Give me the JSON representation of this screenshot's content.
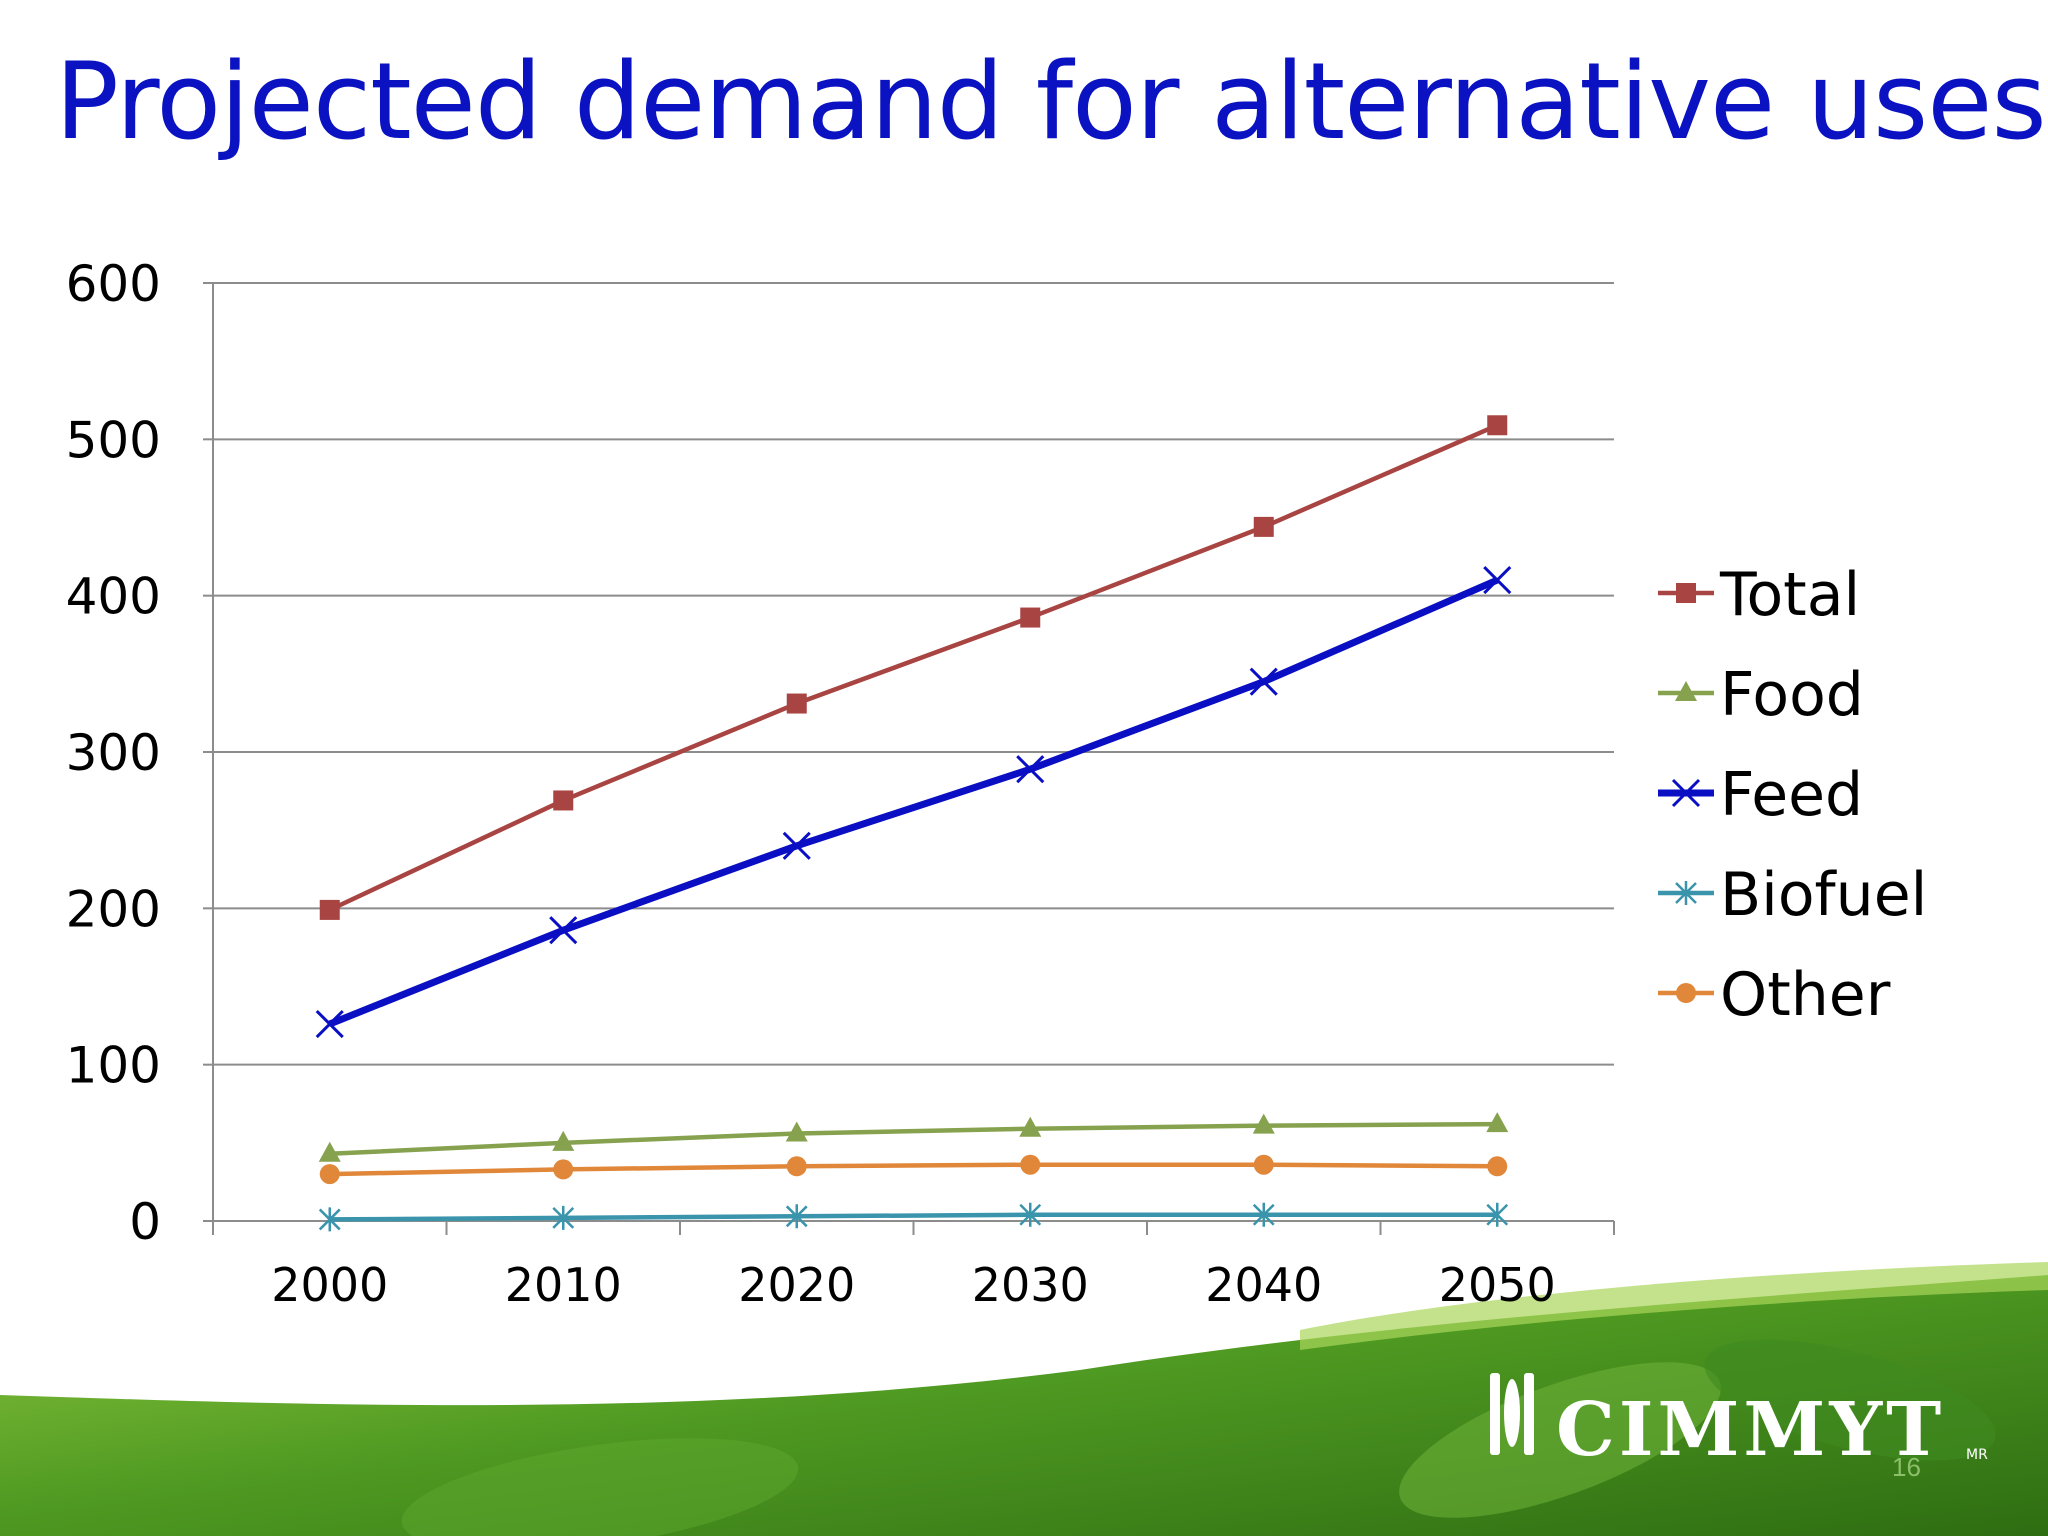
{
  "slide": {
    "title": "Projected demand for alternative uses",
    "page_number": "16",
    "logo": {
      "text": "CIMMYT",
      "mark": "MR"
    }
  },
  "chart_data": {
    "type": "line",
    "x": [
      2000,
      2010,
      2020,
      2030,
      2040,
      2050
    ],
    "categories": [
      "2000",
      "2010",
      "2020",
      "2030",
      "2040",
      "2050"
    ],
    "ylim": [
      0,
      600
    ],
    "yticks": [
      0,
      100,
      200,
      300,
      400,
      500,
      600
    ],
    "grid": true,
    "legend_position": "right",
    "series": [
      {
        "name": "Total",
        "values": [
          199,
          269,
          331,
          386,
          444,
          509
        ],
        "color": "#a84442",
        "marker": "square"
      },
      {
        "name": "Food",
        "values": [
          43,
          50,
          56,
          59,
          61,
          62
        ],
        "color": "#86a24f",
        "marker": "triangle"
      },
      {
        "name": "Feed",
        "values": [
          126,
          186,
          240,
          289,
          345,
          410
        ],
        "color": "#0a0fc4",
        "marker": "x"
      },
      {
        "name": "Biofuel",
        "values": [
          1,
          2,
          3,
          4,
          4,
          4
        ],
        "color": "#3a94ac",
        "marker": "star"
      },
      {
        "name": "Other",
        "values": [
          30,
          33,
          35,
          36,
          36,
          35
        ],
        "color": "#e0873a",
        "marker": "circle"
      }
    ]
  }
}
